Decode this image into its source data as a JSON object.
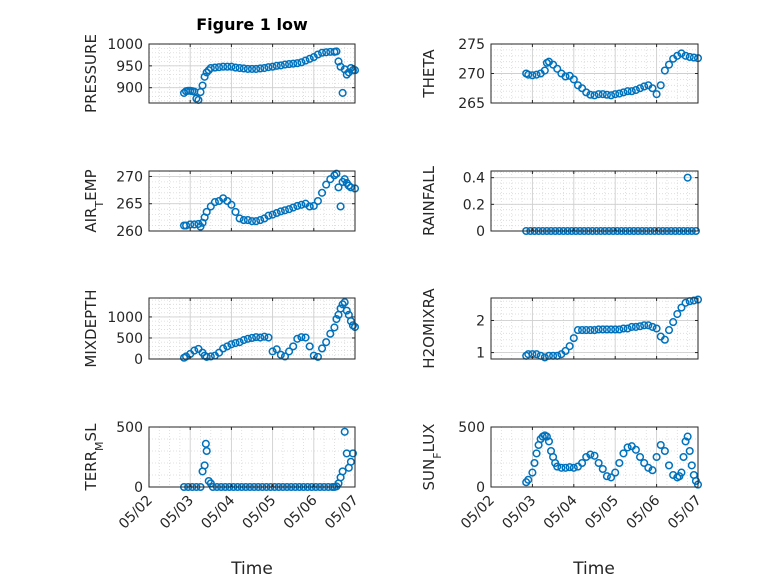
{
  "figure": {
    "title": "Figure 1 low",
    "xlabel": "Time"
  },
  "style": {
    "marker_color": "#0072BD",
    "grid_color": "#d9d9d9",
    "axis_color": "#262626"
  },
  "x_axis": {
    "ticks": [
      "05/02",
      "05/03",
      "05/04",
      "05/05",
      "05/06",
      "05/07"
    ],
    "range": [
      0,
      5
    ]
  },
  "chart_data": [
    {
      "type": "scatter",
      "ylabel": "PRESSURE",
      "ylim": [
        865,
        1000
      ],
      "yticks": [
        900,
        950,
        1000
      ],
      "grid": true,
      "minor_grid": true,
      "x": [
        0.85,
        0.9,
        0.95,
        1.0,
        1.05,
        1.1,
        1.15,
        1.2,
        1.25,
        1.3,
        1.35,
        1.4,
        1.45,
        1.5,
        1.6,
        1.7,
        1.8,
        1.9,
        2.0,
        2.1,
        2.2,
        2.3,
        2.4,
        2.5,
        2.6,
        2.7,
        2.8,
        2.9,
        3.0,
        3.1,
        3.2,
        3.3,
        3.4,
        3.5,
        3.6,
        3.7,
        3.8,
        3.9,
        4.0,
        4.1,
        4.2,
        4.3,
        4.4,
        4.5,
        4.55,
        4.6,
        4.65,
        4.7,
        4.75,
        4.8,
        4.85,
        4.9,
        4.95,
        5.0
      ],
      "values": [
        888,
        892,
        893,
        893,
        892,
        891,
        875,
        872,
        890,
        905,
        925,
        935,
        940,
        945,
        946,
        947,
        948,
        948,
        948,
        946,
        945,
        944,
        943,
        943,
        943,
        944,
        945,
        947,
        948,
        950,
        951,
        953,
        954,
        955,
        956,
        958,
        962,
        966,
        970,
        976,
        980,
        981,
        982,
        982,
        983,
        960,
        948,
        888,
        942,
        930,
        935,
        945,
        940,
        940
      ]
    },
    {
      "type": "scatter",
      "ylabel": "THETA",
      "ylim": [
        265,
        275
      ],
      "yticks": [
        265,
        270,
        275
      ],
      "grid": true,
      "minor_grid": true,
      "x": [
        0.85,
        0.9,
        1.0,
        1.1,
        1.2,
        1.3,
        1.35,
        1.4,
        1.5,
        1.6,
        1.7,
        1.8,
        1.9,
        2.0,
        2.1,
        2.2,
        2.3,
        2.4,
        2.5,
        2.6,
        2.7,
        2.8,
        2.9,
        3.0,
        3.1,
        3.2,
        3.3,
        3.4,
        3.5,
        3.6,
        3.7,
        3.8,
        3.9,
        4.0,
        4.1,
        4.2,
        4.3,
        4.4,
        4.5,
        4.6,
        4.7,
        4.8,
        4.9,
        5.0
      ],
      "values": [
        270,
        269.8,
        269.7,
        269.8,
        270,
        270.5,
        271.8,
        272,
        271.5,
        270.8,
        270,
        269.5,
        269.6,
        269,
        268,
        267.5,
        266.8,
        266.4,
        266.3,
        266.5,
        266.5,
        266.4,
        266.3,
        266.5,
        266.6,
        266.8,
        267,
        267,
        267.2,
        267.5,
        267.8,
        268,
        267.5,
        266.5,
        268,
        270.5,
        271.5,
        272.5,
        273,
        273.4,
        273,
        272.8,
        272.7,
        272.6
      ]
    },
    {
      "type": "scatter",
      "ylabel": "AIR_TEMP",
      "ylim": [
        260,
        271
      ],
      "yticks": [
        260,
        265,
        270
      ],
      "grid": true,
      "minor_grid": true,
      "x": [
        0.85,
        0.9,
        1.0,
        1.1,
        1.2,
        1.25,
        1.3,
        1.35,
        1.4,
        1.5,
        1.6,
        1.7,
        1.8,
        1.9,
        2.0,
        2.1,
        2.2,
        2.3,
        2.4,
        2.5,
        2.6,
        2.7,
        2.8,
        2.9,
        3.0,
        3.1,
        3.2,
        3.3,
        3.4,
        3.5,
        3.6,
        3.7,
        3.8,
        3.9,
        4.0,
        4.1,
        4.2,
        4.3,
        4.4,
        4.5,
        4.55,
        4.6,
        4.65,
        4.7,
        4.75,
        4.8,
        4.85,
        4.9,
        5.0
      ],
      "values": [
        261,
        261,
        261.2,
        261.2,
        261.3,
        260.8,
        261.5,
        262.5,
        263.5,
        264.5,
        265.3,
        265.5,
        266,
        265.5,
        264.8,
        263.5,
        262.3,
        262,
        262,
        261.8,
        261.8,
        262,
        262.3,
        262.8,
        263,
        263.3,
        263.6,
        263.8,
        264,
        264.3,
        264.6,
        264.8,
        265,
        264.5,
        264.6,
        265.5,
        267,
        268.5,
        269.5,
        270.2,
        270.5,
        268,
        264.5,
        269,
        269.5,
        268.8,
        268.3,
        268,
        267.8
      ]
    },
    {
      "type": "scatter",
      "ylabel": "RAINFALL",
      "ylim": [
        0,
        0.45
      ],
      "yticks": [
        0,
        0.2,
        0.4
      ],
      "grid": true,
      "minor_grid": true,
      "x": [
        0.85,
        0.95,
        1.05,
        1.15,
        1.25,
        1.35,
        1.45,
        1.55,
        1.65,
        1.75,
        1.85,
        1.95,
        2.05,
        2.15,
        2.25,
        2.35,
        2.45,
        2.55,
        2.65,
        2.75,
        2.85,
        2.95,
        3.05,
        3.15,
        3.25,
        3.35,
        3.45,
        3.55,
        3.65,
        3.75,
        3.85,
        3.95,
        4.05,
        4.15,
        4.25,
        4.35,
        4.45,
        4.55,
        4.65,
        4.75,
        4.85,
        4.95,
        4.75
      ],
      "values": [
        0,
        0,
        0,
        0,
        0,
        0,
        0,
        0,
        0,
        0,
        0,
        0,
        0,
        0,
        0,
        0,
        0,
        0,
        0,
        0,
        0,
        0,
        0,
        0,
        0,
        0,
        0,
        0,
        0,
        0,
        0,
        0,
        0,
        0,
        0,
        0,
        0,
        0,
        0,
        0,
        0,
        0,
        0.4
      ]
    },
    {
      "type": "scatter",
      "ylabel": "MIXDEPTH",
      "ylim": [
        0,
        1450
      ],
      "yticks": [
        0,
        500,
        1000
      ],
      "grid": true,
      "minor_grid": true,
      "x": [
        0.85,
        0.9,
        1.0,
        1.1,
        1.2,
        1.3,
        1.35,
        1.4,
        1.5,
        1.6,
        1.7,
        1.8,
        1.9,
        2.0,
        2.1,
        2.2,
        2.3,
        2.4,
        2.5,
        2.6,
        2.7,
        2.8,
        2.9,
        3.0,
        3.1,
        3.2,
        3.3,
        3.4,
        3.5,
        3.6,
        3.7,
        3.8,
        3.9,
        4.0,
        4.1,
        4.2,
        4.3,
        4.4,
        4.5,
        4.55,
        4.6,
        4.65,
        4.7,
        4.75,
        4.8,
        4.85,
        4.9,
        4.95,
        5.0
      ],
      "values": [
        30,
        60,
        120,
        200,
        240,
        150,
        80,
        50,
        60,
        80,
        150,
        250,
        300,
        350,
        380,
        400,
        450,
        480,
        500,
        520,
        510,
        530,
        510,
        180,
        230,
        100,
        60,
        180,
        300,
        480,
        520,
        510,
        300,
        80,
        50,
        250,
        400,
        600,
        750,
        950,
        1050,
        1200,
        1300,
        1350,
        1150,
        1050,
        900,
        800,
        760
      ]
    },
    {
      "type": "scatter",
      "ylabel": "H2OMIXRA",
      "ylim": [
        0.8,
        2.7
      ],
      "yticks": [
        1,
        2
      ],
      "grid": true,
      "minor_grid": true,
      "x": [
        0.85,
        0.9,
        1.0,
        1.1,
        1.2,
        1.3,
        1.4,
        1.5,
        1.6,
        1.7,
        1.8,
        1.9,
        2.0,
        2.1,
        2.2,
        2.3,
        2.4,
        2.5,
        2.6,
        2.7,
        2.8,
        2.9,
        3.0,
        3.1,
        3.2,
        3.3,
        3.4,
        3.5,
        3.6,
        3.7,
        3.8,
        3.9,
        4.0,
        4.1,
        4.2,
        4.3,
        4.4,
        4.5,
        4.6,
        4.7,
        4.8,
        4.9,
        5.0
      ],
      "values": [
        0.9,
        0.95,
        0.95,
        0.95,
        0.9,
        0.85,
        0.9,
        0.9,
        0.9,
        0.95,
        1.05,
        1.2,
        1.45,
        1.7,
        1.7,
        1.7,
        1.7,
        1.7,
        1.72,
        1.72,
        1.72,
        1.72,
        1.72,
        1.72,
        1.75,
        1.75,
        1.8,
        1.8,
        1.82,
        1.85,
        1.85,
        1.8,
        1.75,
        1.5,
        1.4,
        1.7,
        1.95,
        2.2,
        2.4,
        2.55,
        2.6,
        2.62,
        2.65
      ]
    },
    {
      "type": "scatter",
      "ylabel": "TERR_MSL",
      "ylim": [
        0,
        500
      ],
      "yticks": [
        0,
        500
      ],
      "grid": true,
      "minor_grid": true,
      "x": [
        0.85,
        0.95,
        1.05,
        1.15,
        1.25,
        1.3,
        1.35,
        1.38,
        1.4,
        1.45,
        1.5,
        1.55,
        1.65,
        1.75,
        1.85,
        1.95,
        2.05,
        2.15,
        2.25,
        2.35,
        2.45,
        2.55,
        2.65,
        2.75,
        2.85,
        2.95,
        3.05,
        3.15,
        3.25,
        3.35,
        3.45,
        3.55,
        3.65,
        3.75,
        3.85,
        3.95,
        4.05,
        4.15,
        4.25,
        4.35,
        4.45,
        4.5,
        4.55,
        4.6,
        4.65,
        4.7,
        4.75,
        4.8,
        4.85,
        4.9,
        4.95
      ],
      "values": [
        0,
        0,
        0,
        0,
        0,
        130,
        180,
        360,
        300,
        50,
        30,
        0,
        0,
        0,
        0,
        0,
        0,
        0,
        0,
        0,
        0,
        0,
        0,
        0,
        0,
        0,
        0,
        0,
        0,
        0,
        0,
        0,
        0,
        0,
        0,
        0,
        0,
        0,
        0,
        0,
        0,
        0,
        5,
        30,
        80,
        130,
        460,
        280,
        160,
        210,
        280
      ]
    },
    {
      "type": "scatter",
      "ylabel": "SUN_FLUX",
      "ylim": [
        0,
        500
      ],
      "yticks": [
        0,
        500
      ],
      "grid": true,
      "minor_grid": true,
      "x": [
        0.85,
        0.9,
        1.0,
        1.05,
        1.1,
        1.15,
        1.2,
        1.25,
        1.3,
        1.35,
        1.4,
        1.45,
        1.5,
        1.55,
        1.6,
        1.7,
        1.8,
        1.9,
        2.0,
        2.1,
        2.2,
        2.3,
        2.4,
        2.5,
        2.6,
        2.7,
        2.8,
        2.9,
        3.0,
        3.1,
        3.2,
        3.3,
        3.4,
        3.5,
        3.6,
        3.7,
        3.8,
        3.9,
        4.0,
        4.1,
        4.2,
        4.3,
        4.4,
        4.5,
        4.55,
        4.6,
        4.65,
        4.7,
        4.75,
        4.8,
        4.85,
        4.9,
        4.95,
        5.0
      ],
      "values": [
        40,
        60,
        120,
        200,
        280,
        350,
        400,
        420,
        430,
        420,
        380,
        300,
        250,
        200,
        170,
        160,
        160,
        165,
        160,
        170,
        200,
        250,
        270,
        260,
        200,
        150,
        90,
        80,
        120,
        200,
        280,
        330,
        340,
        310,
        250,
        200,
        160,
        140,
        250,
        350,
        300,
        180,
        100,
        80,
        90,
        120,
        250,
        380,
        420,
        300,
        180,
        100,
        50,
        20
      ]
    }
  ]
}
